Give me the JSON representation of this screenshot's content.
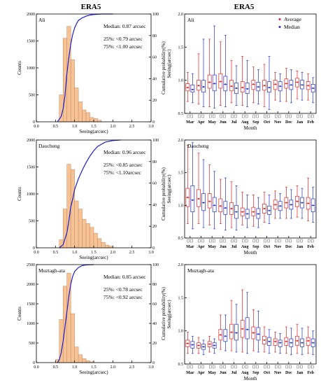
{
  "titles": {
    "left": "ERA5",
    "right": "ERA5"
  },
  "colors": {
    "bar": "#f5c396",
    "bar_edge": "#c8875a",
    "cdf": "#1f1fcc",
    "average": "#e02020",
    "median": "#2030d0"
  },
  "chart_data": [
    {
      "type": "bar",
      "site": "Ali",
      "xlabel": "Seeing(arcsec)",
      "ylabel": "Counts",
      "y2label": "Cumulative probability(%)",
      "xlim": [
        0,
        3
      ],
      "ylim": [
        0,
        2000
      ],
      "y2lim": [
        0,
        100
      ],
      "xticks": [
        "0.0",
        "0.5",
        "1.0",
        "1.5",
        "2.0",
        "2.5",
        "3.0"
      ],
      "yticks": [
        "0",
        "500",
        "1000",
        "1500",
        "2000"
      ],
      "y2ticks": [
        "0",
        "20",
        "40",
        "60",
        "80",
        "100"
      ],
      "bin_width": 0.1,
      "bin_starts": [
        0.6,
        0.7,
        0.8,
        0.9,
        1.0,
        1.1,
        1.2,
        1.3,
        1.4,
        1.5,
        1.6
      ],
      "values": [
        500,
        1550,
        1770,
        1150,
        630,
        370,
        220,
        170,
        80,
        60,
        30
      ],
      "cdf": {
        "x": [
          0.55,
          0.65,
          0.7,
          0.75,
          0.8,
          0.85,
          0.9,
          0.95,
          1.0,
          1.05,
          1.1,
          1.2,
          1.3,
          1.4,
          1.5,
          1.7,
          2.0
        ],
        "y": [
          0,
          5,
          12,
          25,
          45,
          60,
          72,
          81,
          87,
          91,
          94,
          96.5,
          98,
          99,
          99.5,
          100,
          100
        ]
      },
      "annotations": {
        "median": "Median: 0.87 arcsec",
        "p25": "25%:  <0.79 arcsec",
        "p75": "75%:  <1.00 arcsec"
      }
    },
    {
      "type": "bar",
      "site": "Daocheng",
      "xlabel": "Seeing(arcsec)",
      "ylabel": "Counts",
      "y2label": "Cumulative probability(%)",
      "xlim": [
        0,
        3
      ],
      "ylim": [
        0,
        2000
      ],
      "y2lim": [
        0,
        100
      ],
      "xticks": [
        "0.0",
        "0.5",
        "1.0",
        "1.5",
        "2.0",
        "2.5",
        "3.0"
      ],
      "yticks": [
        "0",
        "500",
        "1000",
        "1500",
        "2000"
      ],
      "y2ticks": [
        "0",
        "20",
        "40",
        "60",
        "80",
        "100"
      ],
      "bin_width": 0.1,
      "bin_starts": [
        0.6,
        0.7,
        0.8,
        0.9,
        1.0,
        1.1,
        1.2,
        1.3,
        1.4,
        1.5,
        1.6,
        1.7,
        1.8,
        1.9
      ],
      "values": [
        150,
        720,
        1550,
        1450,
        870,
        720,
        530,
        450,
        380,
        270,
        170,
        100,
        50,
        30
      ],
      "cdf": {
        "x": [
          0.6,
          0.7,
          0.8,
          0.85,
          0.9,
          0.95,
          1.0,
          1.1,
          1.2,
          1.3,
          1.4,
          1.5,
          1.6,
          1.8,
          2.0,
          2.2
        ],
        "y": [
          0,
          3,
          14,
          25,
          38,
          45,
          54,
          64,
          72,
          79,
          85,
          90,
          94,
          98,
          99.5,
          100
        ]
      },
      "annotations": {
        "median": "Median: 0.96 arcsec",
        "p25": "25%:  <0.85 arcsec",
        "p75": "75%:  <1.10arcsec"
      }
    },
    {
      "type": "bar",
      "site": "Muztagh-ata",
      "xlabel": "Seeing(arcsec)",
      "ylabel": "Counts",
      "y2label": "Cumulative probability(%)",
      "xlim": [
        0,
        3
      ],
      "ylim": [
        0,
        2500
      ],
      "y2lim": [
        0,
        100
      ],
      "xticks": [
        "0.0",
        "0.5",
        "1.0",
        "1.5",
        "2.0",
        "2.5",
        "3.0"
      ],
      "yticks": [
        "0",
        "500",
        "1000",
        "1500",
        "2000",
        "2500"
      ],
      "y2ticks": [
        "0",
        "20",
        "40",
        "60",
        "80",
        "100"
      ],
      "bin_width": 0.1,
      "bin_starts": [
        0.5,
        0.6,
        0.7,
        0.8,
        0.9,
        1.0,
        1.1,
        1.2,
        1.3,
        1.4
      ],
      "values": [
        80,
        1100,
        1950,
        2280,
        1250,
        400,
        200,
        100,
        50,
        20
      ],
      "cdf": {
        "x": [
          0.55,
          0.6,
          0.65,
          0.7,
          0.75,
          0.8,
          0.85,
          0.9,
          0.95,
          1.0,
          1.1,
          1.2,
          1.3,
          1.5
        ],
        "y": [
          0,
          3,
          10,
          22,
          37,
          52,
          68,
          80,
          88,
          93,
          97,
          99,
          99.7,
          100
        ]
      },
      "annotations": {
        "median": "Median: 0.85 arcsec",
        "p25": "25%:  <0.78 arcsec",
        "p75": "75%:  <0.92 arcsec"
      }
    },
    {
      "type": "box",
      "site": "Ali",
      "xlabel": "Month",
      "ylabel": "Seeing(arcsec)",
      "ylim": [
        0.5,
        2.0
      ],
      "yticks": [
        "0.5",
        "1.0",
        "1.5",
        "2.0"
      ],
      "categories": [
        "Mar",
        "Apr",
        "May",
        "Jun",
        "Jul",
        "Aug",
        "Sep",
        "Oct",
        "Nov",
        "Dec",
        "Jan",
        "Feb"
      ],
      "legend": [
        "Average",
        "Median"
      ],
      "legend_loc": "top-right",
      "average": [
        {
          "q1": 0.84,
          "med": 0.89,
          "q3": 0.95,
          "lo": 0.68,
          "hi": 1.12
        },
        {
          "q1": 0.85,
          "med": 0.92,
          "q3": 1.0,
          "lo": 0.64,
          "hi": 1.4
        },
        {
          "q1": 0.88,
          "med": 0.97,
          "q3": 1.08,
          "lo": 0.6,
          "hi": 1.62
        },
        {
          "q1": 0.88,
          "med": 0.98,
          "q3": 1.1,
          "lo": 0.62,
          "hi": 1.58
        },
        {
          "q1": 0.84,
          "med": 0.91,
          "q3": 1.0,
          "lo": 0.66,
          "hi": 1.3
        },
        {
          "q1": 0.82,
          "med": 0.89,
          "q3": 0.98,
          "lo": 0.62,
          "hi": 1.36
        },
        {
          "q1": 0.86,
          "med": 0.94,
          "q3": 1.0,
          "lo": 0.66,
          "hi": 1.2
        },
        {
          "q1": 0.85,
          "med": 0.92,
          "q3": 1.0,
          "lo": 0.6,
          "hi": 1.24
        },
        {
          "q1": 0.86,
          "med": 0.94,
          "q3": 1.0,
          "lo": 0.7,
          "hi": 1.12
        },
        {
          "q1": 0.88,
          "med": 0.95,
          "q3": 1.02,
          "lo": 0.68,
          "hi": 1.18
        },
        {
          "q1": 0.9,
          "med": 0.97,
          "q3": 1.03,
          "lo": 0.72,
          "hi": 1.14
        },
        {
          "q1": 0.86,
          "med": 0.92,
          "q3": 0.98,
          "lo": 0.7,
          "hi": 1.1
        }
      ],
      "median": [
        {
          "q1": 0.82,
          "med": 0.86,
          "q3": 0.93,
          "lo": 0.66,
          "hi": 1.1
        },
        {
          "q1": 0.82,
          "med": 0.9,
          "q3": 1.0,
          "lo": 0.6,
          "hi": 1.62
        },
        {
          "q1": 0.84,
          "med": 0.95,
          "q3": 1.08,
          "lo": 0.58,
          "hi": 1.82
        },
        {
          "q1": 0.84,
          "med": 0.94,
          "q3": 1.06,
          "lo": 0.6,
          "hi": 1.68
        },
        {
          "q1": 0.8,
          "med": 0.88,
          "q3": 0.96,
          "lo": 0.62,
          "hi": 1.22
        },
        {
          "q1": 0.8,
          "med": 0.87,
          "q3": 0.96,
          "lo": 0.6,
          "hi": 1.3
        },
        {
          "q1": 0.84,
          "med": 0.9,
          "q3": 0.97,
          "lo": 0.64,
          "hi": 1.16
        },
        {
          "q1": 0.82,
          "med": 0.89,
          "q3": 0.98,
          "lo": 0.56,
          "hi": 1.36
        },
        {
          "q1": 0.84,
          "med": 0.91,
          "q3": 0.98,
          "lo": 0.68,
          "hi": 1.1
        },
        {
          "q1": 0.86,
          "med": 0.93,
          "q3": 1.0,
          "lo": 0.66,
          "hi": 1.16
        },
        {
          "q1": 0.87,
          "med": 0.93,
          "q3": 1.0,
          "lo": 0.7,
          "hi": 1.12
        },
        {
          "q1": 0.82,
          "med": 0.88,
          "q3": 0.94,
          "lo": 0.66,
          "hi": 1.04
        }
      ]
    },
    {
      "type": "box",
      "site": "Daocheng",
      "xlabel": "Month",
      "ylabel": "Seeing(arcsec)",
      "ylim": [
        0.5,
        2.0
      ],
      "yticks": [
        "0.5",
        "1.0",
        "1.5",
        "2.0"
      ],
      "categories": [
        "Mar",
        "Apr",
        "May",
        "Jun",
        "Jul",
        "Aug",
        "Sep",
        "Oct",
        "Nov",
        "Dec",
        "Jan",
        "Feb"
      ],
      "average": [
        {
          "q1": 0.98,
          "med": 1.12,
          "q3": 1.26,
          "lo": 0.72,
          "hi": 1.92
        },
        {
          "q1": 0.98,
          "med": 1.1,
          "q3": 1.24,
          "lo": 0.72,
          "hi": 1.8
        },
        {
          "q1": 0.96,
          "med": 1.06,
          "q3": 1.18,
          "lo": 0.7,
          "hi": 1.62
        },
        {
          "q1": 0.9,
          "med": 0.99,
          "q3": 1.1,
          "lo": 0.72,
          "hi": 1.4
        },
        {
          "q1": 0.86,
          "med": 0.95,
          "q3": 1.04,
          "lo": 0.66,
          "hi": 1.36
        },
        {
          "q1": 0.84,
          "med": 0.9,
          "q3": 0.96,
          "lo": 0.7,
          "hi": 1.2
        },
        {
          "q1": 0.84,
          "med": 0.9,
          "q3": 0.97,
          "lo": 0.68,
          "hi": 1.16
        },
        {
          "q1": 0.88,
          "med": 0.95,
          "q3": 1.02,
          "lo": 0.74,
          "hi": 1.2
        },
        {
          "q1": 0.94,
          "med": 1.01,
          "q3": 1.08,
          "lo": 0.8,
          "hi": 1.22
        },
        {
          "q1": 0.96,
          "med": 1.04,
          "q3": 1.12,
          "lo": 0.8,
          "hi": 1.28
        },
        {
          "q1": 0.98,
          "med": 1.06,
          "q3": 1.14,
          "lo": 0.82,
          "hi": 1.3
        },
        {
          "q1": 0.94,
          "med": 1.03,
          "q3": 1.12,
          "lo": 0.76,
          "hi": 1.42
        }
      ],
      "median": [
        {
          "q1": 0.9,
          "med": 1.08,
          "q3": 1.3,
          "lo": 0.64,
          "hi": 1.96
        },
        {
          "q1": 0.92,
          "med": 1.04,
          "q3": 1.18,
          "lo": 0.66,
          "hi": 1.7
        },
        {
          "q1": 0.9,
          "med": 1.0,
          "q3": 1.12,
          "lo": 0.64,
          "hi": 1.52
        },
        {
          "q1": 0.86,
          "med": 0.96,
          "q3": 1.06,
          "lo": 0.62,
          "hi": 1.42
        },
        {
          "q1": 0.8,
          "med": 0.9,
          "q3": 1.0,
          "lo": 0.62,
          "hi": 1.3
        },
        {
          "q1": 0.8,
          "med": 0.87,
          "q3": 0.94,
          "lo": 0.66,
          "hi": 1.16
        },
        {
          "q1": 0.8,
          "med": 0.87,
          "q3": 0.95,
          "lo": 0.66,
          "hi": 1.12
        },
        {
          "q1": 0.86,
          "med": 0.92,
          "q3": 0.99,
          "lo": 0.72,
          "hi": 1.16
        },
        {
          "q1": 0.92,
          "med": 0.99,
          "q3": 1.06,
          "lo": 0.8,
          "hi": 1.18
        },
        {
          "q1": 0.94,
          "med": 1.01,
          "q3": 1.08,
          "lo": 0.8,
          "hi": 1.24
        },
        {
          "q1": 0.96,
          "med": 1.04,
          "q3": 1.12,
          "lo": 0.8,
          "hi": 1.26
        },
        {
          "q1": 0.9,
          "med": 1.0,
          "q3": 1.1,
          "lo": 0.74,
          "hi": 1.28
        }
      ]
    },
    {
      "type": "box",
      "site": "Muztagh-ata",
      "xlabel": "Month",
      "ylabel": "Seeing(arcsec)",
      "ylim": [
        0.5,
        2.0
      ],
      "yticks": [
        "0.5",
        "1.0",
        "1.5",
        "2.0"
      ],
      "categories": [
        "Mar",
        "Apr",
        "May",
        "Jun",
        "Jul",
        "Aug",
        "Sep",
        "Oct",
        "Nov",
        "Dec",
        "Jan",
        "Feb"
      ],
      "average": [
        {
          "q1": 0.76,
          "med": 0.81,
          "q3": 0.86,
          "lo": 0.66,
          "hi": 0.98
        },
        {
          "q1": 0.74,
          "med": 0.78,
          "q3": 0.82,
          "lo": 0.66,
          "hi": 0.9
        },
        {
          "q1": 0.76,
          "med": 0.8,
          "q3": 0.84,
          "lo": 0.68,
          "hi": 0.92
        },
        {
          "q1": 0.86,
          "med": 0.94,
          "q3": 1.02,
          "lo": 0.72,
          "hi": 1.24
        },
        {
          "q1": 0.88,
          "med": 0.98,
          "q3": 1.1,
          "lo": 0.7,
          "hi": 1.46
        },
        {
          "q1": 0.9,
          "med": 1.03,
          "q3": 1.16,
          "lo": 0.68,
          "hi": 1.62
        },
        {
          "q1": 0.88,
          "med": 0.97,
          "q3": 1.06,
          "lo": 0.7,
          "hi": 1.32
        },
        {
          "q1": 0.8,
          "med": 0.86,
          "q3": 0.92,
          "lo": 0.68,
          "hi": 1.06
        },
        {
          "q1": 0.78,
          "med": 0.84,
          "q3": 0.88,
          "lo": 0.68,
          "hi": 0.98
        },
        {
          "q1": 0.78,
          "med": 0.84,
          "q3": 0.9,
          "lo": 0.66,
          "hi": 1.06
        },
        {
          "q1": 0.78,
          "med": 0.85,
          "q3": 0.92,
          "lo": 0.66,
          "hi": 1.1
        },
        {
          "q1": 0.78,
          "med": 0.85,
          "q3": 0.9,
          "lo": 0.66,
          "hi": 1.06
        }
      ],
      "median": [
        {
          "q1": 0.74,
          "med": 0.79,
          "q3": 0.84,
          "lo": 0.66,
          "hi": 0.92
        },
        {
          "q1": 0.72,
          "med": 0.76,
          "q3": 0.8,
          "lo": 0.64,
          "hi": 0.86
        },
        {
          "q1": 0.74,
          "med": 0.78,
          "q3": 0.82,
          "lo": 0.66,
          "hi": 0.88
        },
        {
          "q1": 0.84,
          "med": 0.92,
          "q3": 1.02,
          "lo": 0.7,
          "hi": 1.24
        },
        {
          "q1": 0.86,
          "med": 0.97,
          "q3": 1.1,
          "lo": 0.68,
          "hi": 1.4
        },
        {
          "q1": 0.88,
          "med": 1.02,
          "q3": 1.2,
          "lo": 0.66,
          "hi": 1.58
        },
        {
          "q1": 0.86,
          "med": 0.95,
          "q3": 1.05,
          "lo": 0.68,
          "hi": 1.3
        },
        {
          "q1": 0.78,
          "med": 0.84,
          "q3": 0.9,
          "lo": 0.66,
          "hi": 1.02
        },
        {
          "q1": 0.76,
          "med": 0.82,
          "q3": 0.86,
          "lo": 0.66,
          "hi": 0.96
        },
        {
          "q1": 0.76,
          "med": 0.82,
          "q3": 0.88,
          "lo": 0.64,
          "hi": 1.04
        },
        {
          "q1": 0.76,
          "med": 0.82,
          "q3": 0.88,
          "lo": 0.64,
          "hi": 1.04
        },
        {
          "q1": 0.76,
          "med": 0.82,
          "q3": 0.88,
          "lo": 0.64,
          "hi": 1.0
        }
      ]
    }
  ]
}
